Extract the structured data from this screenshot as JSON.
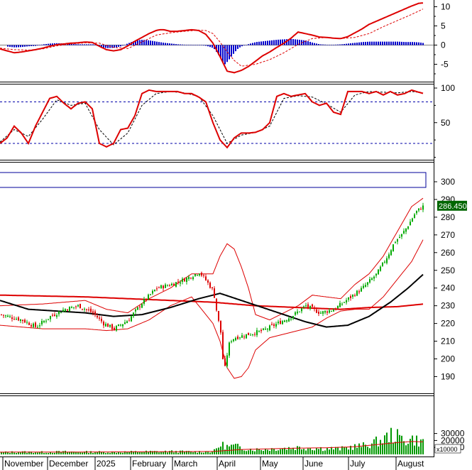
{
  "time_axis": {
    "labels": [
      "November",
      "December",
      "2025",
      "February",
      "March",
      "April",
      "May",
      "June",
      "July",
      "August"
    ]
  },
  "chart_data": [
    {
      "type": "line",
      "panel": "macd",
      "y_ticks": [
        "10",
        "5",
        "0",
        "-5"
      ],
      "ylim": [
        -8,
        12
      ],
      "series": [
        {
          "role": "macd",
          "color": "#dd0000",
          "x": [
            0,
            10,
            20,
            30,
            40,
            50,
            60,
            70,
            80,
            90,
            100,
            110,
            120,
            130,
            140,
            150,
            160,
            170,
            180,
            190,
            200,
            210,
            220,
            225,
            231,
            240,
            250,
            260,
            270,
            280,
            290,
            300,
            310,
            320,
            330,
            340,
            350,
            360,
            370,
            380,
            390,
            400,
            410,
            420,
            430,
            440,
            450,
            460,
            470,
            480,
            490,
            500,
            510,
            520,
            530,
            540,
            550,
            560,
            570,
            580,
            590,
            597
          ],
          "values": [
            -1.0,
            -1.5,
            -2.0,
            -1.8,
            -1.5,
            -1.2,
            -0.8,
            -0.3,
            0.1,
            0.3,
            0.5,
            0.6,
            0.8,
            0.7,
            -0.3,
            -1.2,
            -1.5,
            -1.2,
            -0.2,
            1.0,
            2.0,
            3.0,
            3.8,
            4.0,
            4.0,
            3.6,
            3.6,
            3.8,
            4.0,
            3.8,
            2.8,
            0.5,
            -3.0,
            -6.8,
            -7.2,
            -6.6,
            -5.6,
            -4.2,
            -2.8,
            -1.8,
            -0.6,
            0.5,
            1.8,
            3.4,
            3.0,
            2.6,
            2.1,
            2.0,
            1.8,
            1.7,
            2.2,
            3.2,
            4.2,
            5.4,
            6.2,
            7.0,
            7.8,
            8.6,
            9.4,
            10.2,
            10.9,
            11.0
          ]
        },
        {
          "role": "signal",
          "color": "#dd0000",
          "dashed": true,
          "x": [
            0,
            20,
            40,
            60,
            80,
            100,
            120,
            140,
            160,
            180,
            200,
            220,
            240,
            260,
            280,
            290,
            300,
            310,
            320,
            330,
            340,
            360,
            380,
            400,
            420,
            440,
            460,
            480,
            500,
            520,
            540,
            560,
            580,
            597
          ],
          "values": [
            -0.8,
            -1.2,
            -1.3,
            -1.0,
            -0.2,
            0.3,
            0.6,
            0.5,
            -0.6,
            -0.9,
            0.8,
            2.6,
            3.2,
            3.6,
            3.9,
            3.8,
            3.0,
            0.8,
            -1.8,
            -4.0,
            -5.5,
            -5.0,
            -3.8,
            -2.0,
            0.2,
            1.7,
            2.0,
            1.7,
            2.0,
            3.0,
            4.8,
            6.4,
            8.0,
            9.5
          ]
        },
        {
          "role": "histogram",
          "color": "#0000cc",
          "x": [
            10,
            20,
            30,
            40,
            50,
            60,
            70,
            80,
            90,
            100,
            110,
            120,
            130,
            140,
            150,
            160,
            170,
            180,
            190,
            200,
            210,
            220,
            230,
            240,
            250,
            260,
            270,
            280,
            290,
            300,
            305,
            310,
            315,
            320,
            325,
            330,
            335,
            340,
            350,
            360,
            370,
            380,
            390,
            400,
            410,
            420,
            430,
            440,
            450,
            460,
            470,
            480,
            490,
            500,
            510,
            520,
            530,
            540,
            550,
            560,
            570,
            580,
            590,
            597
          ],
          "values": [
            -0.4,
            -0.6,
            -0.5,
            -0.3,
            -0.2,
            0.2,
            0.4,
            0.5,
            0.4,
            0.3,
            0.2,
            0.2,
            0.2,
            -0.5,
            -0.8,
            -0.7,
            -0.3,
            0.5,
            1.2,
            1.4,
            1.2,
            0.9,
            0.6,
            0.4,
            0.2,
            0.1,
            0.1,
            0.0,
            -0.2,
            -0.8,
            -2.0,
            -3.4,
            -5.2,
            -4.2,
            -3.0,
            -1.8,
            -0.8,
            -0.3,
            0.3,
            0.8,
            1.0,
            1.2,
            1.4,
            1.5,
            1.6,
            1.4,
            1.2,
            0.6,
            0.2,
            0.1,
            0.1,
            0.2,
            0.4,
            0.6,
            0.8,
            0.9,
            0.9,
            0.9,
            0.9,
            0.9,
            0.8,
            0.8,
            0.7,
            0.5
          ]
        }
      ]
    },
    {
      "type": "line",
      "panel": "stochastic",
      "y_ticks": [
        "100",
        "50"
      ],
      "ylim": [
        -10,
        110
      ],
      "reference_lines": [
        80,
        20
      ],
      "series": [
        {
          "role": "k",
          "color": "#dd0000",
          "x": [
            0,
            10,
            20,
            30,
            40,
            50,
            60,
            70,
            80,
            90,
            100,
            110,
            120,
            130,
            140,
            150,
            160,
            170,
            180,
            190,
            200,
            210,
            220,
            230,
            240,
            250,
            260,
            270,
            280,
            290,
            300,
            310,
            320,
            330,
            340,
            350,
            360,
            370,
            380,
            390,
            400,
            410,
            420,
            430,
            440,
            450,
            460,
            470,
            480,
            490,
            500,
            510,
            520,
            530,
            540,
            550,
            560,
            570,
            580,
            590,
            597
          ],
          "values": [
            20,
            28,
            45,
            35,
            20,
            45,
            65,
            85,
            88,
            78,
            70,
            78,
            80,
            70,
            20,
            15,
            20,
            40,
            42,
            60,
            92,
            97,
            95,
            95,
            95,
            95,
            92,
            92,
            87,
            80,
            50,
            25,
            14,
            28,
            35,
            35,
            36,
            40,
            50,
            88,
            92,
            88,
            90,
            92,
            80,
            75,
            78,
            65,
            62,
            95,
            95,
            95,
            92,
            95,
            90,
            95,
            90,
            92,
            97,
            94,
            92
          ]
        },
        {
          "role": "d",
          "color": "#000000",
          "dashed": true,
          "x": [
            0,
            20,
            40,
            60,
            80,
            100,
            120,
            140,
            160,
            180,
            200,
            220,
            240,
            260,
            280,
            300,
            320,
            340,
            360,
            380,
            400,
            420,
            440,
            460,
            480,
            500,
            520,
            540,
            560,
            580,
            597
          ],
          "values": [
            22,
            40,
            30,
            55,
            83,
            75,
            78,
            40,
            18,
            35,
            75,
            92,
            95,
            93,
            88,
            60,
            20,
            32,
            36,
            45,
            85,
            89,
            87,
            77,
            65,
            90,
            95,
            94,
            93,
            95,
            93
          ]
        }
      ]
    },
    {
      "type": "candlestick",
      "panel": "price",
      "y_ticks": [
        "300",
        "290",
        "280",
        "270",
        "260",
        "250",
        "240",
        "230",
        "220",
        "210",
        "200",
        "190"
      ],
      "ylim": [
        182.5,
        305.5
      ],
      "last_price": "286.450",
      "colors": {
        "up": "#00aa00",
        "down": "#dd0000",
        "last_price_bg": "#006600",
        "last_price_text": "#ffffff"
      },
      "close": {
        "x": [
          0,
          30,
          50,
          70,
          90,
          110,
          130,
          145,
          160,
          180,
          200,
          220,
          240,
          260,
          280,
          290,
          300,
          305,
          310,
          313,
          316,
          320,
          323,
          326,
          330,
          340,
          350,
          370,
          390,
          410,
          430,
          450,
          470,
          490,
          510,
          530,
          545,
          555,
          565,
          575,
          585,
          595
        ],
        "values": [
          225,
          222,
          218,
          224,
          228,
          230,
          226,
          220,
          217,
          222,
          232,
          240,
          242,
          245,
          249,
          244,
          238,
          225,
          215,
          200,
          195,
          205,
          210,
          211,
          212,
          213,
          214,
          216,
          220,
          224,
          230,
          226,
          228,
          234,
          240,
          248,
          258,
          266,
          270,
          276,
          283,
          286
        ]
      },
      "bollinger_upper": {
        "x": [
          0,
          60,
          120,
          150,
          180,
          210,
          240,
          270,
          300,
          310,
          320,
          330,
          340,
          350,
          360,
          380,
          400,
          420,
          440,
          460,
          480,
          500,
          520,
          540,
          560,
          580,
          597
        ],
        "values": [
          230,
          231,
          233,
          228,
          226,
          234,
          240,
          248,
          248,
          258,
          265,
          262,
          252,
          240,
          225,
          222,
          226,
          230,
          236,
          235,
          234,
          242,
          248,
          258,
          272,
          286,
          291
        ]
      },
      "bollinger_lower": {
        "x": [
          0,
          60,
          120,
          150,
          180,
          210,
          240,
          270,
          300,
          310,
          320,
          330,
          340,
          350,
          360,
          380,
          400,
          420,
          440,
          460,
          480,
          500,
          520,
          540,
          560,
          580,
          597
        ],
        "values": [
          219,
          217,
          217,
          216,
          217,
          222,
          230,
          235,
          220,
          210,
          195,
          189,
          190,
          195,
          205,
          212,
          214,
          216,
          218,
          223,
          227,
          228,
          228,
          235,
          245,
          255,
          268
        ]
      },
      "ma_long": {
        "color": "#000000",
        "x": [
          0,
          40,
          80,
          120,
          160,
          200,
          240,
          280,
          310,
          340,
          370,
          400,
          430,
          460,
          490,
          520,
          550,
          575,
          597
        ],
        "values": [
          233,
          228,
          227,
          226,
          224,
          225,
          229,
          234,
          237,
          233,
          229,
          225,
          221,
          218,
          219,
          224,
          232,
          240,
          248
        ]
      },
      "ma_flat": {
        "color": "#dd0000",
        "x": [
          0,
          60,
          120,
          180,
          240,
          300,
          360,
          420,
          480,
          520,
          560,
          597
        ],
        "values": [
          236,
          235.5,
          235,
          234,
          233,
          232,
          230,
          229,
          228,
          229,
          229.5,
          231
        ]
      }
    },
    {
      "type": "bar",
      "panel": "volume",
      "y_ticks": [
        "30000",
        "20000",
        "10000"
      ],
      "unit": "x10000",
      "ylim": [
        0,
        33000
      ],
      "bar_color": "#009900",
      "average_color": "#dd0000",
      "volume": {
        "x": [
          0,
          30,
          60,
          90,
          120,
          150,
          180,
          210,
          240,
          270,
          300,
          310,
          320,
          330,
          340,
          350,
          360,
          380,
          400,
          420,
          440,
          460,
          480,
          495,
          510,
          520,
          530,
          540,
          550,
          560,
          570,
          580,
          590,
          597
        ],
        "values": [
          3000,
          3500,
          3200,
          3800,
          3500,
          3400,
          3600,
          4000,
          4200,
          3800,
          4200,
          14000,
          11000,
          12000,
          9000,
          8000,
          7000,
          8000,
          9000,
          10000,
          9000,
          8500,
          8000,
          11000,
          12000,
          15000,
          18000,
          22000,
          28000,
          25000,
          20000,
          22000,
          19000,
          17000
        ]
      },
      "volume_average": {
        "x": [
          0,
          60,
          120,
          180,
          240,
          300,
          340,
          380,
          420,
          460,
          500,
          540,
          560,
          580,
          597
        ],
        "values": [
          3200,
          3300,
          3400,
          3600,
          3800,
          4200,
          7000,
          8000,
          9000,
          9500,
          11000,
          15000,
          17000,
          18500,
          18000
        ]
      }
    }
  ]
}
